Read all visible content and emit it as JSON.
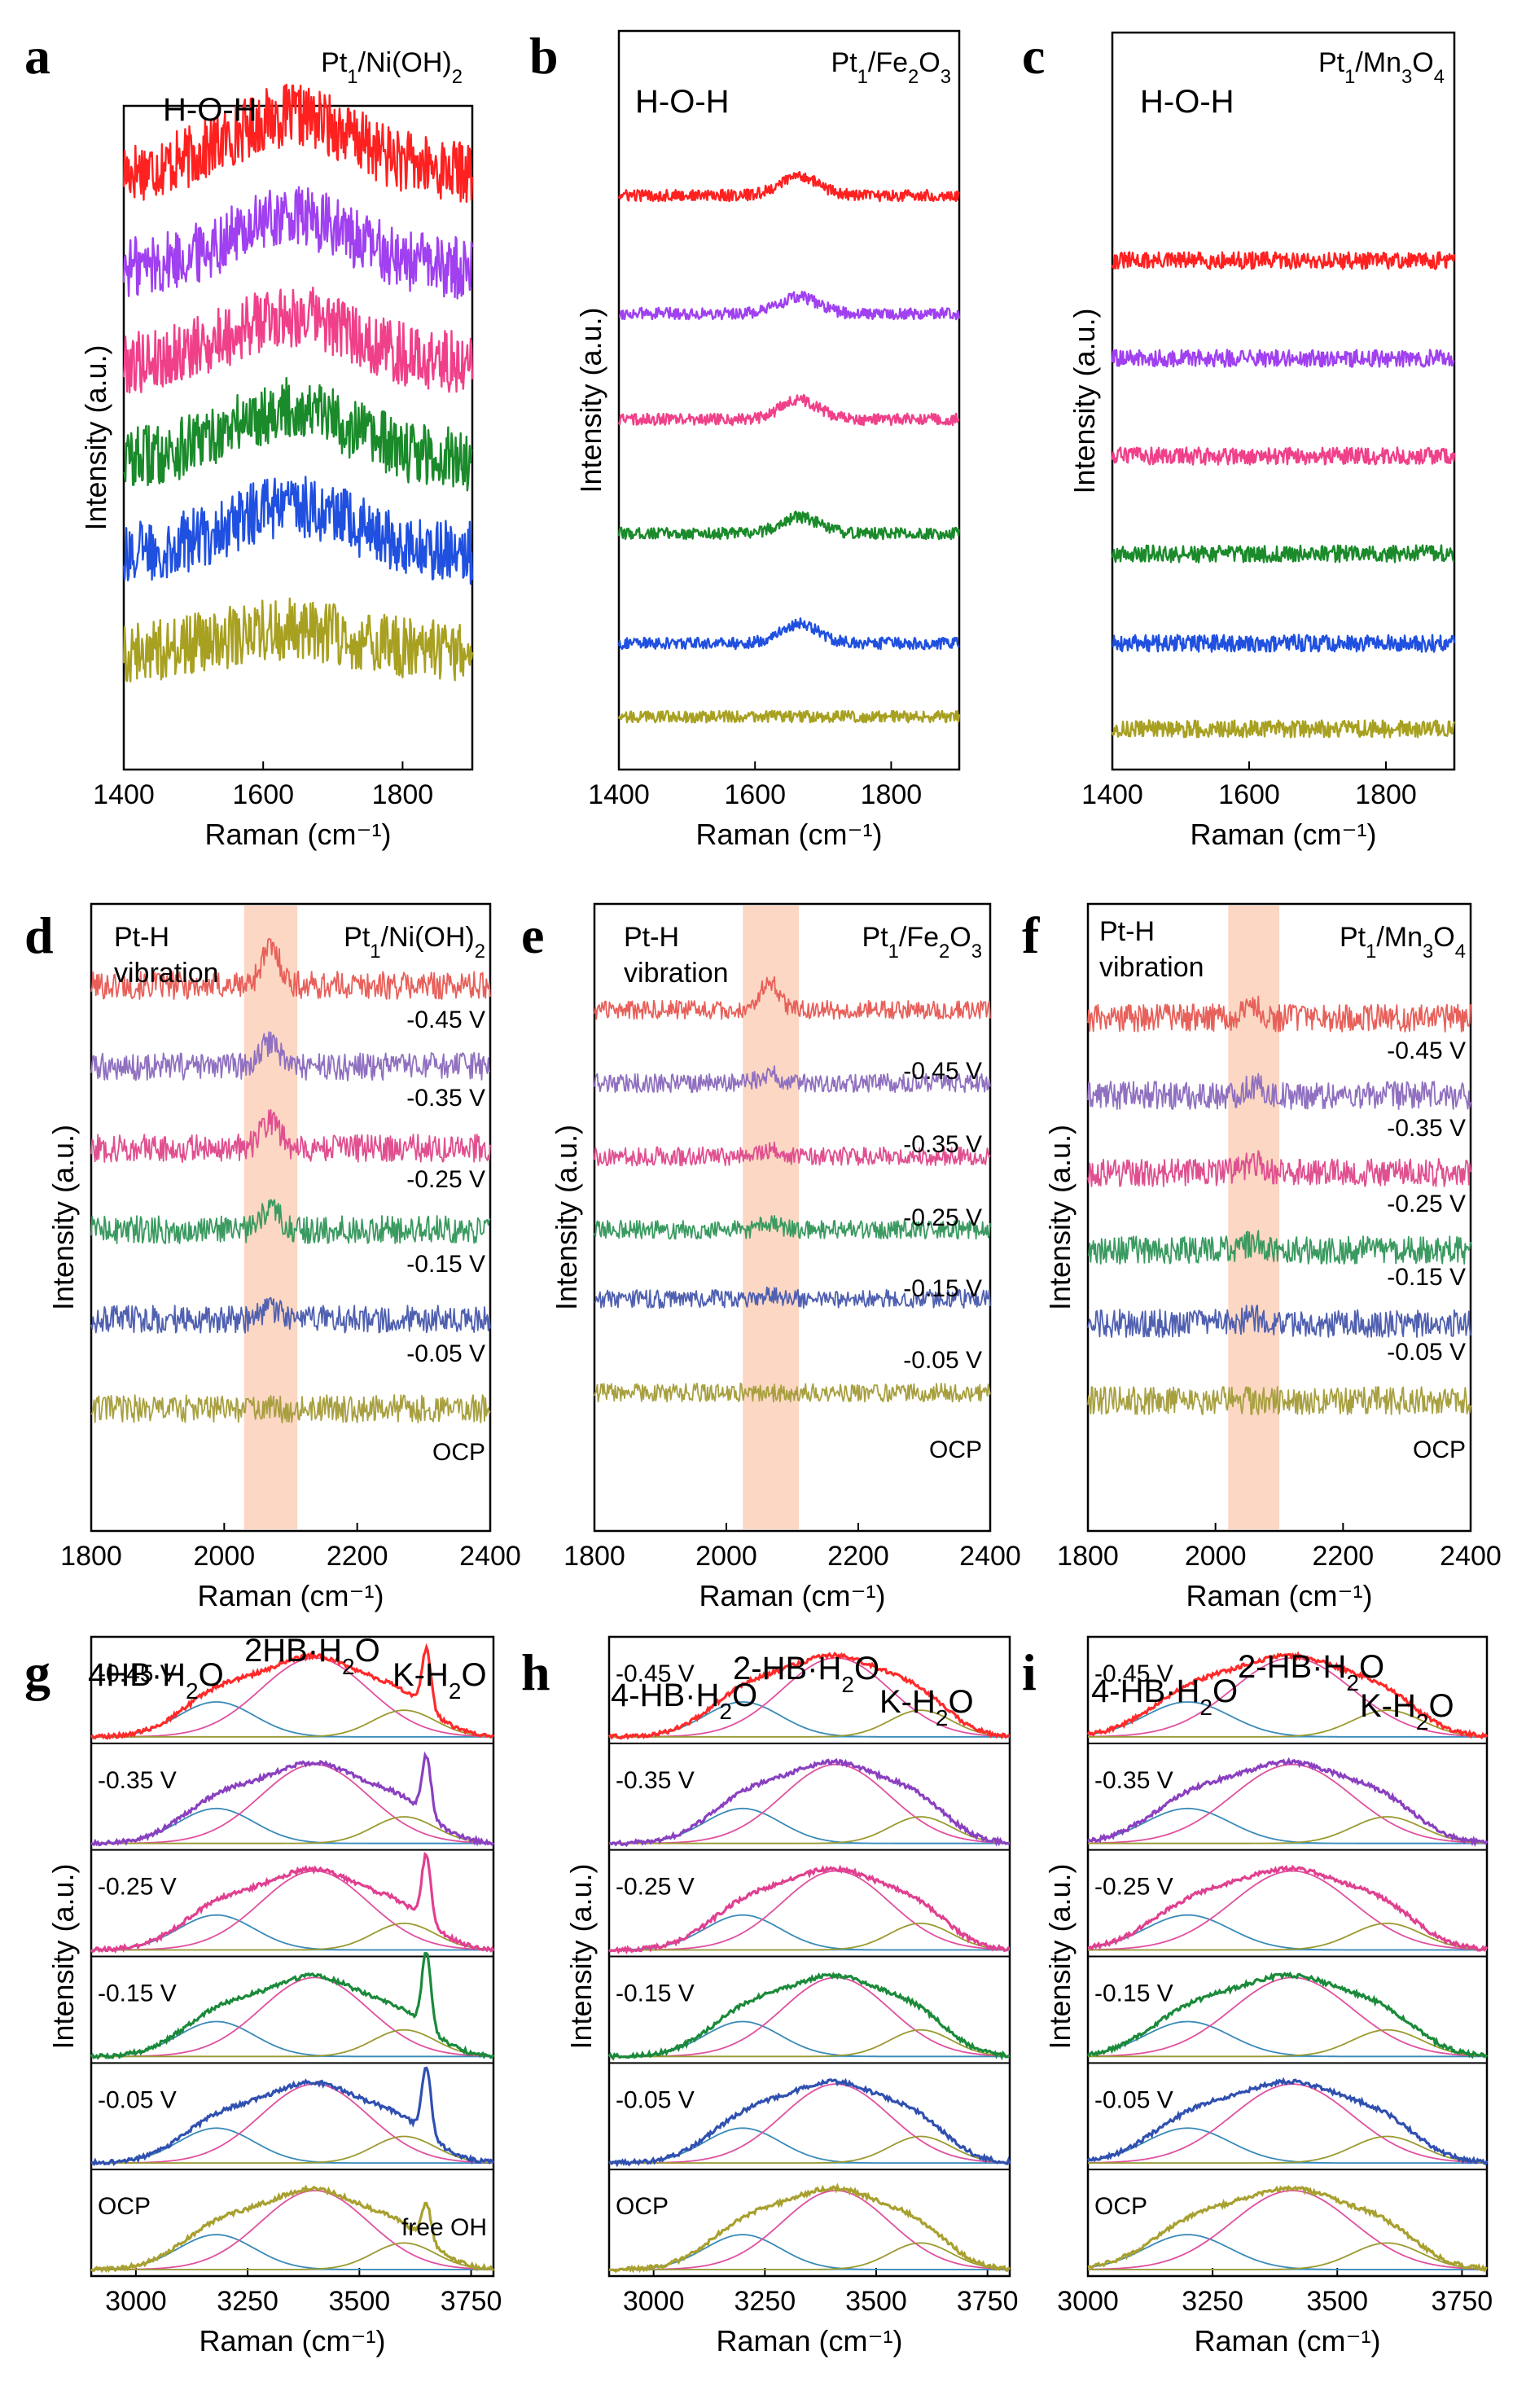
{
  "chart_data": [
    {
      "panel": "a",
      "type": "line",
      "title": "Pt1/Ni(OH)2",
      "sample_base": "Pt",
      "sample_sub1": "1",
      "sample_mid": "/Ni(OH)",
      "sample_sub2": "2",
      "sample_tail": "",
      "annotation": "H-O-H",
      "xlabel": "Raman (cm⁻¹)",
      "ylabel": "Intensity (a.u.)",
      "xlim": [
        1400,
        1900
      ],
      "xticks": [
        1400,
        1600,
        1800
      ],
      "series_colors": [
        "#ff2020",
        "#a040f0",
        "#f0408a",
        "#1a8a2a",
        "#2050e0",
        "#a8a020"
      ],
      "peak_center": 1640,
      "peak_heights": [
        1.0,
        0.9,
        0.85,
        0.9,
        0.85,
        0.4
      ],
      "noise": 0.55
    },
    {
      "panel": "b",
      "type": "line",
      "title": "Pt1/Fe2O3",
      "sample_base": "Pt",
      "sample_sub1": "1",
      "sample_mid": "/Fe",
      "sample_sub2": "2",
      "sample_tail": "O3",
      "annotation": "H-O-H",
      "xlabel": "Raman (cm⁻¹)",
      "ylabel": "Intensity (a.u.)",
      "xlim": [
        1400,
        1900
      ],
      "xticks": [
        1400,
        1600,
        1800
      ],
      "series_colors": [
        "#ff2020",
        "#a040f0",
        "#f0408a",
        "#1a8a2a",
        "#2050e0",
        "#a8a020"
      ],
      "peak_center": 1665,
      "peak_heights": [
        0.6,
        0.5,
        0.6,
        0.5,
        0.6,
        0.0
      ],
      "noise": 0.18
    },
    {
      "panel": "c",
      "type": "line",
      "title": "Pt1/Mn3O4",
      "sample_base": "Pt",
      "sample_sub1": "1",
      "sample_mid": "/Mn",
      "sample_sub2": "3",
      "sample_tail": "O4",
      "annotation": "H-O-H",
      "xlabel": "Raman (cm⁻¹)",
      "ylabel": "Intensity (a.u.)",
      "xlim": [
        1400,
        1900
      ],
      "xticks": [
        1400,
        1600,
        1800
      ],
      "series_colors": [
        "#ff2020",
        "#a040f0",
        "#f0408a",
        "#1a8a2a",
        "#2050e0",
        "#a8a020"
      ],
      "peak_center": 1650,
      "peak_heights": [
        0,
        0,
        0,
        0,
        0,
        0
      ],
      "noise": 0.3
    },
    {
      "panel": "d",
      "type": "line",
      "title": "Pt1/Ni(OH)2",
      "sample_base": "Pt",
      "sample_sub1": "1",
      "sample_mid": "/Ni(OH)",
      "sample_sub2": "2",
      "sample_tail": "",
      "annotation_line1": "Pt-H",
      "annotation_line2": "vibration",
      "xlabel": "Raman (cm⁻¹)",
      "ylabel": "Intensity (a.u.)",
      "xlim": [
        1800,
        2400
      ],
      "xticks": [
        1800,
        2000,
        2200,
        2400
      ],
      "highlight_range": [
        2030,
        2110
      ],
      "potentials": [
        "-0.45 V",
        "-0.35 V",
        "-0.25 V",
        "-0.15 V",
        "-0.05 V",
        "OCP"
      ],
      "series_colors": [
        "#e8605a",
        "#9070c0",
        "#e05090",
        "#3a9a60",
        "#5060b0",
        "#a8a040"
      ],
      "peak_center": 2070,
      "peak_heights": [
        1.2,
        0.8,
        0.9,
        0.6,
        0.3,
        0.0
      ],
      "noise": 0.45
    },
    {
      "panel": "e",
      "type": "line",
      "title": "Pt1/Fe2O3",
      "sample_base": "Pt",
      "sample_sub1": "1",
      "sample_mid": "/Fe",
      "sample_sub2": "2",
      "sample_tail": "O3",
      "annotation_line1": "Pt-H",
      "annotation_line2": "vibration",
      "xlabel": "Raman (cm⁻¹)",
      "ylabel": "Intensity (a.u.)",
      "xlim": [
        1800,
        2400
      ],
      "xticks": [
        1800,
        2000,
        2200,
        2400
      ],
      "highlight_range": [
        2025,
        2110
      ],
      "potentials": [
        "-0.45 V",
        "-0.35 V",
        "-0.25 V",
        "-0.15 V",
        "-0.05 V",
        "OCP"
      ],
      "series_colors": [
        "#e8605a",
        "#9070c0",
        "#e05090",
        "#3a9a60",
        "#5060b0",
        "#a8a040"
      ],
      "peak_center": 2065,
      "peak_heights": [
        0.9,
        0.3,
        0.2,
        0.2,
        0.1,
        0.0
      ],
      "noise": 0.3
    },
    {
      "panel": "f",
      "type": "line",
      "title": "Pt1/Mn3O4",
      "sample_base": "Pt",
      "sample_sub1": "1",
      "sample_mid": "/Mn",
      "sample_sub2": "3",
      "sample_tail": "O4",
      "annotation_line1": "Pt-H",
      "annotation_line2": "vibration",
      "xlabel": "Raman (cm⁻¹)",
      "ylabel": "Intensity (a.u.)",
      "xlim": [
        1800,
        2400
      ],
      "xticks": [
        1800,
        2000,
        2200,
        2400
      ],
      "highlight_range": [
        2020,
        2100
      ],
      "potentials": [
        "-0.45 V",
        "-0.35 V",
        "-0.25 V",
        "-0.15 V",
        "-0.05 V",
        "OCP"
      ],
      "series_colors": [
        "#e8605a",
        "#9070c0",
        "#e05090",
        "#3a9a60",
        "#5060b0",
        "#a8a040"
      ],
      "peak_center": 2060,
      "peak_heights": [
        0.3,
        0.3,
        0.3,
        0.2,
        0.2,
        0.0
      ],
      "noise": 0.45
    },
    {
      "panel": "g",
      "type": "area",
      "xlabel": "Raman (cm⁻¹)",
      "ylabel": "Intensity (a.u.)",
      "xlim": [
        2900,
        3800
      ],
      "xticks": [
        3000,
        3250,
        3500,
        3750
      ],
      "potentials": [
        "-0.45 V",
        "-0.35 V",
        "-0.25 V",
        "-0.15 V",
        "-0.05 V",
        "OCP"
      ],
      "label_4hb_base": "4HB",
      "label_4hb_tail": "·H",
      "label_2hb_base": "2HB",
      "label_2hb_tail": "·H",
      "label_k": "K-H",
      "water_sub": "2",
      "water_o": "O",
      "label_free_oh": "free OH",
      "series_colors": [
        "#ff2a2a",
        "#8a40c0",
        "#e04090",
        "#1a8a3a",
        "#3050b0",
        "#a8a030"
      ],
      "components": {
        "hb4_center": 3180,
        "hb2_center": 3400,
        "k_center": 3600,
        "free_oh": 3650
      },
      "free_oh_heights": [
        0.7,
        0.7,
        0.8,
        0.9,
        0.8,
        0.45
      ]
    },
    {
      "panel": "h",
      "type": "area",
      "xlabel": "Raman (cm⁻¹)",
      "ylabel": "Intensity (a.u.)",
      "xlim": [
        2900,
        3800
      ],
      "xticks": [
        3000,
        3250,
        3500,
        3750
      ],
      "potentials": [
        "-0.45 V",
        "-0.35 V",
        "-0.25 V",
        "-0.15 V",
        "-0.05 V",
        "OCP"
      ],
      "label_4hb_base": "4-HB",
      "label_4hb_tail": "·H",
      "label_2hb_base": "2-HB",
      "label_2hb_tail": "·H",
      "label_k": "K-H",
      "water_sub": "2",
      "water_o": "O",
      "series_colors": [
        "#ff2a2a",
        "#8a40c0",
        "#e04090",
        "#1a8a3a",
        "#3050b0",
        "#a8a030"
      ],
      "components": {
        "hb4_center": 3200,
        "hb2_center": 3410,
        "k_center": 3600
      }
    },
    {
      "panel": "i",
      "type": "area",
      "xlabel": "Raman (cm⁻¹)",
      "ylabel": "Intensity (a.u.)",
      "xlim": [
        3000,
        3800
      ],
      "xticks": [
        3000,
        3250,
        3500,
        3750
      ],
      "potentials": [
        "-0.45 V",
        "-0.35 V",
        "-0.25 V",
        "-0.15 V",
        "-0.05 V",
        "OCP"
      ],
      "label_4hb_base": "4-HB",
      "label_4hb_tail": "·H",
      "label_2hb_base": "2-HB",
      "label_2hb_tail": "·H",
      "label_k": "K-H",
      "water_sub": "2",
      "water_o": "O",
      "series_colors": [
        "#ff2a2a",
        "#8a40c0",
        "#e04090",
        "#1a8a3a",
        "#3050b0",
        "#a8a030"
      ],
      "components": {
        "hb4_center": 3200,
        "hb2_center": 3410,
        "k_center": 3600
      }
    }
  ]
}
